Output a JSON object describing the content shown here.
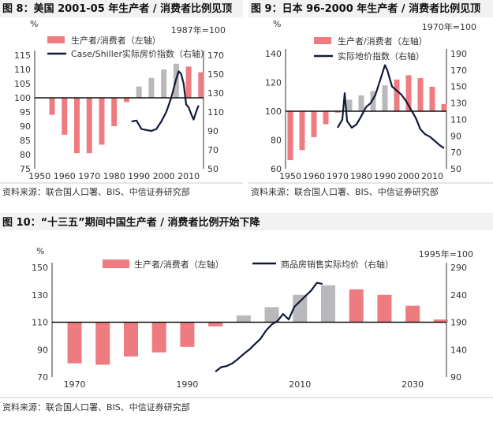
{
  "charts": [
    {
      "title": "图 8：美国 2001-05 年生产者 / 消费者比例见顶",
      "source": "资料来源：联合国人口署、BIS、中信证券研究部",
      "left_unit": "%",
      "right_note": "1987年=100",
      "legend": [
        "生产者/消费者（左轴）",
        "Case/Shiller实际房价指数（右轴）"
      ],
      "x_ticks": [
        "1950",
        "1960",
        "1970",
        "1980",
        "1990",
        "2000",
        "2010"
      ],
      "y_left_ticks": [
        "75",
        "80",
        "85",
        "90",
        "95",
        "100",
        "105",
        "110",
        "115"
      ],
      "y_right_ticks": [
        "50",
        "70",
        "90",
        "110",
        "130",
        "150",
        "170"
      ]
    },
    {
      "title": "图 9：日本 96-2000 年生产者 / 消费者比例见顶",
      "source": "资料来源：联合国人口署、BIS、中信证券研究部",
      "left_unit": "%",
      "right_note": "1970年=100",
      "legend": [
        "生产者/消费者（左轴）",
        "实际地价指数（右轴）"
      ],
      "x_ticks": [
        "1950",
        "1960",
        "1970",
        "1980",
        "1990",
        "2000",
        "2010"
      ],
      "y_left_ticks": [
        "60",
        "80",
        "100",
        "120",
        "140"
      ],
      "y_right_ticks": [
        "50",
        "70",
        "90",
        "110",
        "130",
        "150",
        "170",
        "190"
      ]
    },
    {
      "title": "图 10：“十三五”期间中国生产者 / 消费者比例开始下降",
      "source": "资料来源：联合国人口署、BIS、中信证券研究部",
      "left_unit": "%",
      "right_note": "1995年=100",
      "legend": [
        "生产者/消费者（左轴）",
        "商品房销售实际均价（右轴）"
      ],
      "x_ticks": [
        "1970",
        "1990",
        "2010",
        "2030"
      ],
      "y_left_ticks": [
        "70",
        "90",
        "110",
        "130",
        "150"
      ],
      "y_right_ticks": [
        "90",
        "140",
        "190",
        "240",
        "290"
      ]
    }
  ],
  "chart_data": [
    {
      "type": "bar",
      "x_range": [
        1948,
        2016
      ],
      "ylim": [
        75,
        115
      ],
      "y2lim": [
        50,
        170
      ],
      "base": 100,
      "colors": {
        "bar": "#ee7b80",
        "bar_gray": "#b9b9bb",
        "line": "#111a3a"
      },
      "series": [
        {
          "name": "生产者/消费者（左轴）",
          "axis": "left",
          "kind": "bar",
          "x": [
            1955,
            1960,
            1965,
            1970,
            1975,
            1980,
            1985,
            1990,
            1995,
            2000,
            2005,
            2010,
            2015
          ],
          "values": [
            94,
            87,
            80.5,
            80.5,
            83.5,
            90,
            98.5,
            104,
            107,
            110,
            112,
            111,
            109
          ],
          "gray": [
            false,
            false,
            false,
            false,
            false,
            false,
            false,
            true,
            true,
            true,
            true,
            false,
            false
          ]
        },
        {
          "name": "Case/Shiller实际房价指数（右轴）",
          "axis": "right",
          "kind": "line",
          "x": [
            1987,
            1989,
            1991,
            1993,
            1995,
            1997,
            1999,
            2001,
            2003,
            2005,
            2006,
            2007,
            2008,
            2009,
            2010,
            2011,
            2012,
            2013,
            2014
          ],
          "values": [
            100,
            101,
            92,
            91,
            90,
            92,
            100,
            110,
            125,
            145,
            153,
            150,
            140,
            118,
            115,
            108,
            102,
            110,
            117
          ]
        }
      ]
    },
    {
      "type": "bar",
      "x_range": [
        1948,
        2016
      ],
      "ylim": [
        60,
        140
      ],
      "y2lim": [
        50,
        190
      ],
      "base": 100,
      "colors": {
        "bar": "#ee7b80",
        "bar_gray": "#b9b9bb",
        "line": "#111a3a"
      },
      "series": [
        {
          "name": "生产者/消费者（左轴）",
          "axis": "left",
          "kind": "bar",
          "x": [
            1950,
            1955,
            1960,
            1965,
            1970,
            1975,
            1980,
            1985,
            1990,
            1995,
            2000,
            2005,
            2010,
            2015
          ],
          "values": [
            66,
            73,
            82,
            91,
            99,
            108,
            111,
            114,
            118,
            122,
            125,
            123,
            117,
            105
          ],
          "gray": [
            false,
            false,
            false,
            false,
            false,
            true,
            true,
            true,
            true,
            false,
            false,
            false,
            false,
            false
          ]
        },
        {
          "name": "实际地价指数（右轴）",
          "axis": "right",
          "kind": "line",
          "x": [
            1970,
            1972,
            1973,
            1974,
            1976,
            1978,
            1980,
            1982,
            1984,
            1986,
            1988,
            1990,
            1991,
            1993,
            1995,
            1997,
            1999,
            2001,
            2003,
            2005,
            2007,
            2009,
            2011,
            2013,
            2015
          ],
          "values": [
            100,
            110,
            142,
            108,
            100,
            104,
            114,
            125,
            130,
            140,
            158,
            176,
            170,
            150,
            145,
            140,
            132,
            122,
            112,
            98,
            92,
            89,
            84,
            79,
            75
          ]
        }
      ]
    },
    {
      "type": "bar",
      "x_range": [
        1966,
        2036
      ],
      "ylim": [
        70,
        150
      ],
      "y2lim": [
        90,
        290
      ],
      "base": 110,
      "colors": {
        "bar": "#ee7b80",
        "bar_gray": "#b9b9bb",
        "line": "#111a3a"
      },
      "series": [
        {
          "name": "生产者/消费者（左轴）",
          "axis": "left",
          "kind": "bar",
          "x": [
            1970,
            1975,
            1980,
            1985,
            1990,
            1995,
            2000,
            2005,
            2010,
            2015,
            2020,
            2025,
            2030,
            2035
          ],
          "values": [
            80,
            79,
            85,
            88,
            92,
            107,
            115,
            121,
            130,
            137,
            134,
            130,
            122,
            112
          ],
          "gray": [
            false,
            false,
            false,
            false,
            false,
            false,
            true,
            true,
            true,
            true,
            false,
            false,
            false,
            false
          ]
        },
        {
          "name": "商品房销售实际均价（右轴）",
          "axis": "right",
          "kind": "line",
          "x": [
            1995,
            1996,
            1997,
            1998,
            1999,
            2000,
            2001,
            2002,
            2003,
            2004,
            2005,
            2006,
            2007,
            2008,
            2009,
            2010,
            2011,
            2012,
            2013,
            2014
          ],
          "values": [
            100,
            108,
            110,
            115,
            123,
            132,
            140,
            150,
            160,
            175,
            186,
            192,
            205,
            195,
            218,
            228,
            238,
            248,
            262,
            260
          ]
        }
      ]
    }
  ]
}
